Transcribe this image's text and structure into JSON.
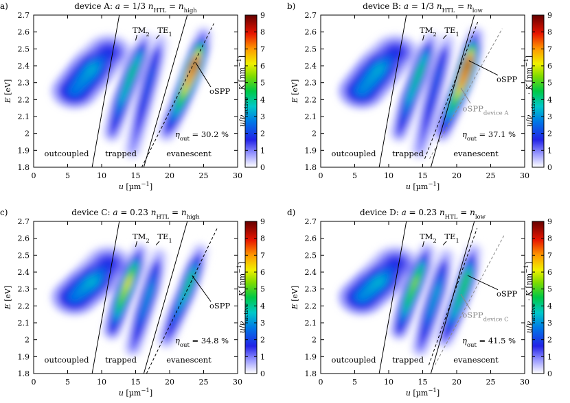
{
  "chart_data": [
    {
      "type": "heatmap",
      "panel_label": "a)",
      "title": "device A: a = 1/3 n_HTL = n_high",
      "xlabel": "u [µm⁻¹]",
      "ylabel": "E [eV]",
      "colorbar_label": "u/ν_active · K [nm⁻¹]",
      "xlim": [
        0,
        30
      ],
      "ylim": [
        1.8,
        2.7
      ],
      "clim": [
        0,
        9
      ],
      "x_ticks": [
        "0",
        "5",
        "10",
        "15",
        "20",
        "25",
        "30"
      ],
      "y_ticks": [
        "1.8",
        "1.9",
        "2",
        "2.1",
        "2.2",
        "2.3",
        "2.4",
        "2.5",
        "2.6",
        "2.7"
      ],
      "c_ticks": [
        "0",
        "1",
        "2",
        "3",
        "4",
        "5",
        "6",
        "7",
        "8",
        "9"
      ],
      "regions": [
        "outcoupled",
        "trapped",
        "evanescent"
      ],
      "efficiency": "η_out = 30.2 %",
      "annotations": [
        "TM₂",
        "TE₁",
        "oSPP"
      ],
      "features": [
        {
          "name": "outcoupled",
          "points": [
            [
              6,
              2.25,
              2.6
            ],
            [
              9,
              2.4,
              3.3
            ],
            [
              11,
              2.48,
              1.8
            ]
          ]
        },
        {
          "name": "TM2",
          "points": [
            [
              11.5,
              2.0,
              1.2
            ],
            [
              13,
              2.2,
              3.5
            ],
            [
              14.6,
              2.37,
              4.3
            ],
            [
              15.8,
              2.48,
              3.2
            ],
            [
              16.4,
              2.55,
              0.8
            ]
          ]
        },
        {
          "name": "TE1",
          "points": [
            [
              14.5,
              1.9,
              0.8
            ],
            [
              16,
              2.15,
              2.0
            ],
            [
              17.3,
              2.35,
              2.4
            ],
            [
              18.2,
              2.48,
              1.6
            ],
            [
              18.7,
              2.55,
              0.5
            ]
          ]
        },
        {
          "name": "oSPP",
          "points": [
            [
              19.5,
              2.0,
              1.0
            ],
            [
              21.2,
              2.15,
              4.0
            ],
            [
              22.7,
              2.3,
              7.0
            ],
            [
              23.8,
              2.42,
              8.6
            ],
            [
              24.6,
              2.52,
              4.5
            ],
            [
              25.0,
              2.58,
              1.0
            ]
          ]
        }
      ],
      "light_line": [
        [
          8.6,
          1.8
        ],
        [
          12.6,
          2.7
        ]
      ],
      "boundary_line": [
        [
          16.2,
          1.8
        ],
        [
          22.6,
          2.7
        ]
      ],
      "dashed_line": [
        [
          15.9,
          1.8
        ],
        [
          26.5,
          2.65
        ]
      ]
    },
    {
      "type": "heatmap",
      "panel_label": "b)",
      "title": "device B: a = 1/3 n_HTL = n_low",
      "xlabel": "u [µm⁻¹]",
      "ylabel": "E [eV]",
      "colorbar_label": "u/ν_active · K [nm⁻¹]",
      "xlim": [
        0,
        30
      ],
      "ylim": [
        1.8,
        2.7
      ],
      "clim": [
        0,
        9
      ],
      "x_ticks": [
        "0",
        "5",
        "10",
        "15",
        "20",
        "25",
        "30"
      ],
      "y_ticks": [
        "1.8",
        "1.9",
        "2",
        "2.1",
        "2.2",
        "2.3",
        "2.4",
        "2.5",
        "2.6",
        "2.7"
      ],
      "c_ticks": [
        "0",
        "1",
        "2",
        "3",
        "4",
        "5",
        "6",
        "7",
        "8",
        "9"
      ],
      "regions": [
        "outcoupled",
        "trapped",
        "evanescent"
      ],
      "efficiency": "η_out = 37.1 %",
      "annotations": [
        "TM₂",
        "TE₁",
        "oSPP",
        "oSPP_device A"
      ],
      "features": [
        {
          "name": "outcoupled",
          "points": [
            [
              6,
              2.25,
              2.8
            ],
            [
              9,
              2.4,
              3.3
            ],
            [
              11,
              2.48,
              1.8
            ]
          ]
        },
        {
          "name": "TM2",
          "points": [
            [
              11.5,
              2.0,
              1.2
            ],
            [
              13,
              2.2,
              3.5
            ],
            [
              14.6,
              2.37,
              4.3
            ],
            [
              15.6,
              2.48,
              3.2
            ],
            [
              16.2,
              2.55,
              0.8
            ]
          ]
        },
        {
          "name": "TE1",
          "points": [
            [
              14.5,
              1.9,
              0.8
            ],
            [
              16,
              2.15,
              2.0
            ],
            [
              17.3,
              2.35,
              2.4
            ],
            [
              18.2,
              2.48,
              1.6
            ],
            [
              18.7,
              2.55,
              0.5
            ]
          ]
        },
        {
          "name": "oSPP",
          "points": [
            [
              17.8,
              2.0,
              1.2
            ],
            [
              19.3,
              2.15,
              4.2
            ],
            [
              20.8,
              2.3,
              7.5
            ],
            [
              21.8,
              2.43,
              8.6
            ],
            [
              22.4,
              2.52,
              4.5
            ],
            [
              22.8,
              2.58,
              1.0
            ]
          ]
        }
      ],
      "light_line": [
        [
          8.6,
          1.8
        ],
        [
          12.6,
          2.7
        ]
      ],
      "boundary_line": [
        [
          16.2,
          1.8
        ],
        [
          22.6,
          2.7
        ]
      ],
      "dashed_line": [
        [
          15.3,
          1.85
        ],
        [
          23.1,
          2.66
        ]
      ],
      "ref_dashed_line": [
        [
          16.0,
          1.85
        ],
        [
          26.7,
          2.62
        ]
      ]
    },
    {
      "type": "heatmap",
      "panel_label": "c)",
      "title": "device C: a = 0.23 n_HTL = n_high",
      "xlabel": "u [µm⁻¹]",
      "ylabel": "E [eV]",
      "colorbar_label": "u/ν_active · K [nm⁻¹]",
      "xlim": [
        0,
        30
      ],
      "ylim": [
        1.8,
        2.7
      ],
      "clim": [
        0,
        9
      ],
      "x_ticks": [
        "0",
        "5",
        "10",
        "15",
        "20",
        "25",
        "30"
      ],
      "y_ticks": [
        "1.8",
        "1.9",
        "2",
        "2.1",
        "2.2",
        "2.3",
        "2.4",
        "2.5",
        "2.6",
        "2.7"
      ],
      "c_ticks": [
        "0",
        "1",
        "2",
        "3",
        "4",
        "5",
        "6",
        "7",
        "8",
        "9"
      ],
      "regions": [
        "outcoupled",
        "trapped",
        "evanescent"
      ],
      "efficiency": "η_out = 34.8 %",
      "annotations": [
        "TM₂",
        "TE₁",
        "oSPP"
      ],
      "features": [
        {
          "name": "outcoupled",
          "points": [
            [
              6,
              2.25,
              2.6
            ],
            [
              9,
              2.36,
              3.4
            ],
            [
              11,
              2.45,
              1.8
            ]
          ]
        },
        {
          "name": "TM2",
          "points": [
            [
              11.5,
              2.05,
              1.5
            ],
            [
              12.8,
              2.22,
              5.0
            ],
            [
              14.0,
              2.35,
              6.4
            ],
            [
              15.0,
              2.45,
              4.0
            ],
            [
              15.6,
              2.52,
              1.0
            ]
          ]
        },
        {
          "name": "TE1",
          "points": [
            [
              14.6,
              1.95,
              1.0
            ],
            [
              16,
              2.15,
              2.8
            ],
            [
              17.2,
              2.3,
              3.2
            ],
            [
              18.0,
              2.42,
              2.0
            ],
            [
              18.5,
              2.5,
              0.6
            ]
          ]
        },
        {
          "name": "oSPP",
          "points": [
            [
              19.5,
              2.0,
              1.0
            ],
            [
              21.0,
              2.15,
              2.8
            ],
            [
              22.4,
              2.28,
              4.0
            ],
            [
              23.3,
              2.38,
              4.3
            ],
            [
              24.0,
              2.46,
              2.6
            ],
            [
              24.5,
              2.52,
              0.8
            ]
          ]
        }
      ],
      "light_line": [
        [
          8.6,
          1.8
        ],
        [
          12.6,
          2.7
        ]
      ],
      "boundary_line": [
        [
          16.2,
          1.8
        ],
        [
          22.6,
          2.7
        ]
      ],
      "dashed_line": [
        [
          16.6,
          1.8
        ],
        [
          27.0,
          2.66
        ]
      ]
    },
    {
      "type": "heatmap",
      "panel_label": "d)",
      "title": "device D: a = 0.23 n_HTL = n_low",
      "xlabel": "u [µm⁻¹]",
      "ylabel": "E [eV]",
      "colorbar_label": "u/ν_active · K [nm⁻¹]",
      "xlim": [
        0,
        30
      ],
      "ylim": [
        1.8,
        2.7
      ],
      "clim": [
        0,
        9
      ],
      "x_ticks": [
        "0",
        "5",
        "10",
        "15",
        "20",
        "25",
        "30"
      ],
      "y_ticks": [
        "1.8",
        "1.9",
        "2",
        "2.1",
        "2.2",
        "2.3",
        "2.4",
        "2.5",
        "2.6",
        "2.7"
      ],
      "c_ticks": [
        "0",
        "1",
        "2",
        "3",
        "4",
        "5",
        "6",
        "7",
        "8",
        "9"
      ],
      "regions": [
        "outcoupled",
        "trapped",
        "evanescent"
      ],
      "efficiency": "η_out = 41.5 %",
      "annotations": [
        "TM₂",
        "TE₁",
        "oSPP",
        "oSPP_device C"
      ],
      "features": [
        {
          "name": "outcoupled",
          "points": [
            [
              6,
              2.25,
              2.8
            ],
            [
              9,
              2.36,
              3.4
            ],
            [
              11,
              2.45,
              1.8
            ]
          ]
        },
        {
          "name": "TM2",
          "points": [
            [
              11.5,
              2.05,
              1.5
            ],
            [
              12.8,
              2.22,
              4.5
            ],
            [
              14.0,
              2.35,
              5.6
            ],
            [
              15.0,
              2.45,
              3.6
            ],
            [
              15.6,
              2.52,
              1.0
            ]
          ]
        },
        {
          "name": "TE1",
          "points": [
            [
              14.6,
              1.95,
              1.0
            ],
            [
              16,
              2.15,
              3.0
            ],
            [
              17.2,
              2.3,
              3.4
            ],
            [
              18.0,
              2.42,
              2.0
            ],
            [
              18.5,
              2.5,
              0.6
            ]
          ]
        },
        {
          "name": "oSPP",
          "points": [
            [
              18.2,
              2.0,
              1.0
            ],
            [
              19.6,
              2.15,
              3.5
            ],
            [
              20.8,
              2.28,
              4.6
            ],
            [
              21.6,
              2.38,
              4.8
            ],
            [
              22.1,
              2.46,
              2.6
            ],
            [
              22.5,
              2.52,
              0.8
            ]
          ]
        }
      ],
      "light_line": [
        [
          8.6,
          1.8
        ],
        [
          12.6,
          2.7
        ]
      ],
      "boundary_line": [
        [
          16.2,
          1.8
        ],
        [
          22.6,
          2.7
        ]
      ],
      "dashed_line": [
        [
          15.9,
          1.85
        ],
        [
          23.0,
          2.66
        ]
      ],
      "ref_dashed_line": [
        [
          16.8,
          1.85
        ],
        [
          27.0,
          2.62
        ]
      ]
    }
  ]
}
